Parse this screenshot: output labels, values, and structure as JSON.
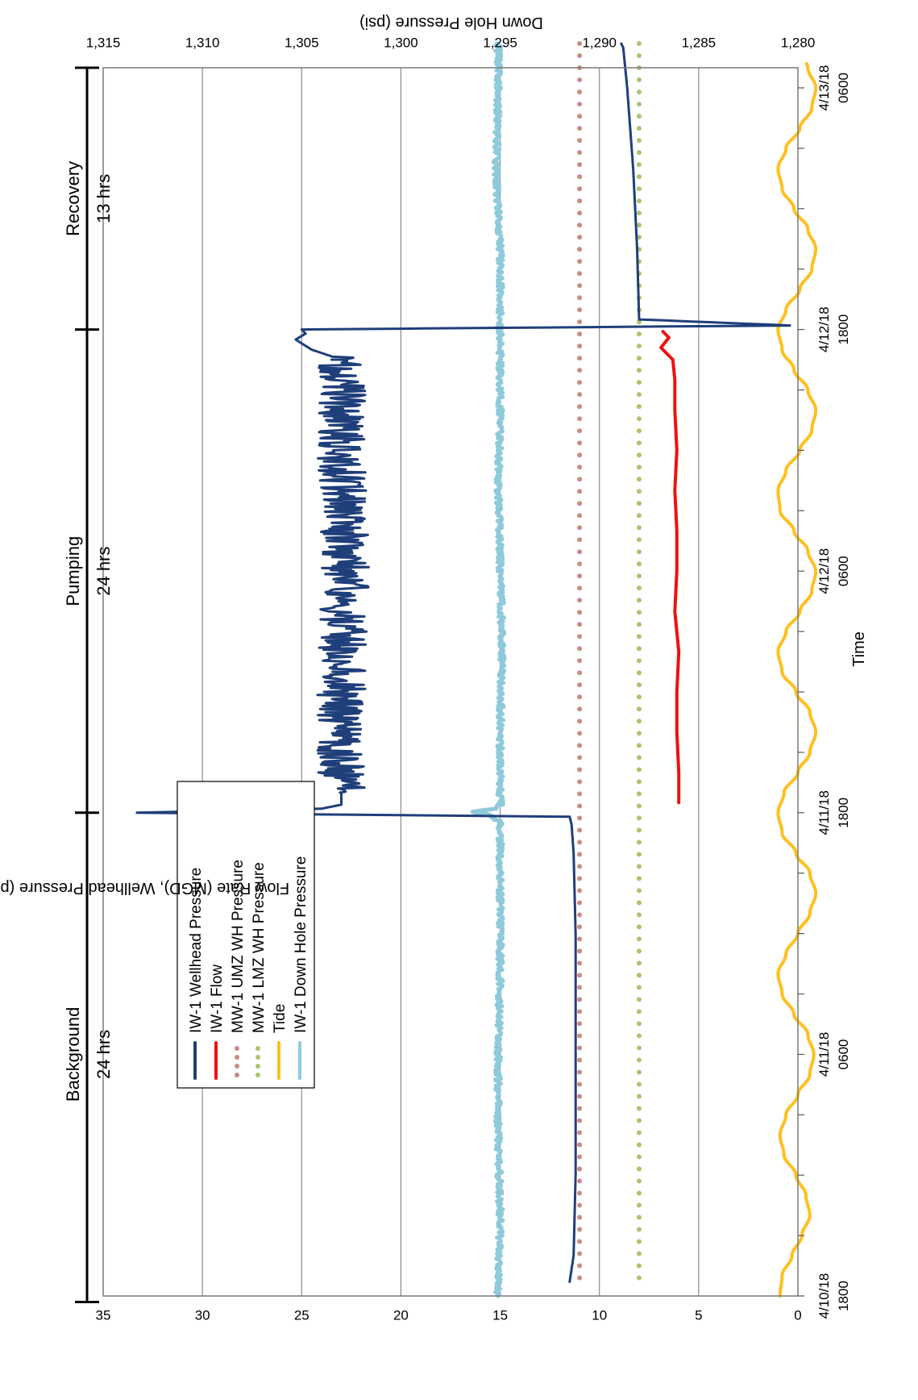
{
  "chart_data": {
    "type": "line",
    "orientation": "rotated-90-clockwise",
    "xlabel": "Time",
    "ylabel_left": "Flow Rate (MGD),  Wellhead Pressure (psi), and Tidal Stage (psi)",
    "ylabel_right": "Down Hole Pressure (psi)",
    "x_unit": "hours since 4/10/18 1800",
    "xlim": [
      0,
      61
    ],
    "ylim_left": [
      0,
      35
    ],
    "ylim_right": [
      1280,
      1315
    ],
    "grid": true,
    "legend_position": "bottom-left",
    "x_ticks": [
      {
        "x": 0,
        "label1": "4/10/18",
        "label2": "1800"
      },
      {
        "x": 12,
        "label1": "4/11/18",
        "label2": "0600"
      },
      {
        "x": 24,
        "label1": "4/11/18",
        "label2": "1800"
      },
      {
        "x": 36,
        "label1": "4/12/18",
        "label2": "0600"
      },
      {
        "x": 48,
        "label1": "4/12/18",
        "label2": "1800"
      },
      {
        "x": 60,
        "label1": "4/13/18",
        "label2": "0600"
      }
    ],
    "y_ticks_left": [
      "0",
      "5",
      "10",
      "15",
      "20",
      "25",
      "30",
      "35"
    ],
    "y_ticks_right": [
      "1,280",
      "1,285",
      "1,290",
      "1,295",
      "1,300",
      "1,305",
      "1,310",
      "1,315"
    ],
    "phases": [
      {
        "name": "Background",
        "duration": "24 hrs",
        "start": -0.3,
        "end": 24
      },
      {
        "name": "Pumping",
        "duration": "24 hrs",
        "start": 24,
        "end": 48
      },
      {
        "name": "Recovery",
        "duration": "13 hrs",
        "start": 48,
        "end": 61
      }
    ],
    "series": [
      {
        "name": "IW-1 Wellhead Pressure",
        "color": "#1f3f7a",
        "style": "solid",
        "axis": "left",
        "x": [
          0.7,
          2,
          6,
          12,
          18,
          22,
          23.4,
          23.8,
          24,
          24.2,
          24.4,
          25,
          30,
          36,
          42,
          46.5,
          47,
          47.5,
          47.8,
          48,
          48.2,
          48.5,
          52,
          56,
          60,
          62,
          62.2
        ],
        "y": [
          11.5,
          11.3,
          11.2,
          11.2,
          11.2,
          11.3,
          11.4,
          11.5,
          33.3,
          24.0,
          23.0,
          23.0,
          23.0,
          22.8,
          23.0,
          23.0,
          24.5,
          25.3,
          24.8,
          25.0,
          0.4,
          8.0,
          8.1,
          8.3,
          8.6,
          8.8,
          8.9
        ],
        "noise_ranges": [
          [
            25.0,
            46.6,
            1.2
          ]
        ]
      },
      {
        "name": "IW-1 Flow",
        "color": "#ee1111",
        "style": "solid",
        "axis": "left",
        "x": [
          24.5,
          26,
          28,
          30,
          32,
          34,
          36,
          38,
          40,
          42,
          44,
          45.5,
          46.5,
          47.1,
          47.6,
          47.9
        ],
        "y": [
          6.0,
          6.0,
          6.1,
          6.1,
          6.0,
          6.2,
          6.1,
          6.1,
          6.2,
          6.1,
          6.2,
          6.2,
          6.3,
          6.9,
          6.5,
          6.8
        ]
      },
      {
        "name": "MW-1 UMZ WH Pressure",
        "color": "#c98b86",
        "style": "dotted",
        "axis": "left",
        "x": [
          0.9,
          62.2
        ],
        "y": [
          11.0,
          11.0
        ]
      },
      {
        "name": "MW-1 LMZ WH Pressure",
        "color": "#a9c56d",
        "style": "dotted",
        "axis": "left",
        "x": [
          0.9,
          62.2
        ],
        "y": [
          8.0,
          8.0
        ]
      },
      {
        "name": "Tide",
        "color": "#ffbf1f",
        "style": "solid",
        "axis": "left",
        "x": [
          0,
          1,
          2,
          3,
          4,
          5,
          6,
          7,
          8,
          9,
          10,
          11,
          12,
          13,
          14,
          15,
          16,
          17,
          18,
          19,
          20,
          21,
          22,
          23,
          24,
          25,
          26,
          27,
          28,
          29,
          30,
          31,
          32,
          33,
          34,
          35,
          36,
          37,
          38,
          39,
          40,
          41,
          42,
          43,
          44,
          45,
          46,
          47,
          48,
          49,
          50,
          51,
          52,
          53,
          54,
          55,
          56,
          57,
          58,
          59,
          60,
          61,
          62,
          63
        ],
        "y": [
          0.9,
          0.8,
          0.3,
          -0.2,
          -0.6,
          -0.4,
          0.1,
          0.7,
          0.9,
          0.6,
          0.0,
          -0.6,
          -0.8,
          -0.5,
          0.2,
          0.8,
          1.0,
          0.6,
          0.0,
          -0.6,
          -0.9,
          -0.6,
          0.1,
          0.8,
          1.0,
          0.7,
          0.0,
          -0.6,
          -0.9,
          -0.6,
          0.1,
          0.8,
          1.0,
          0.6,
          -0.1,
          -0.7,
          -0.9,
          -0.5,
          0.2,
          0.9,
          1.0,
          0.6,
          -0.1,
          -0.7,
          -0.9,
          -0.5,
          0.2,
          0.8,
          1.0,
          0.6,
          -0.1,
          -0.7,
          -0.9,
          -0.5,
          0.2,
          0.8,
          1.0,
          0.6,
          -0.1,
          -0.7,
          -0.9,
          -0.5,
          0.2,
          0.4
        ]
      },
      {
        "name": "IW-1 Down Hole Pressure",
        "color": "#8fcadb",
        "style": "solid",
        "axis": "right",
        "x": [
          0,
          4,
          8,
          12,
          16,
          20,
          23.5,
          23.9,
          24.05,
          24.2,
          24.4,
          28,
          32,
          36,
          40,
          44,
          47.8,
          48.0,
          48.2,
          52,
          56,
          60,
          62.2
        ],
        "y": [
          1295.1,
          1295.0,
          1295.1,
          1295.1,
          1295.0,
          1295.0,
          1295.0,
          1295.5,
          1296.5,
          1295.3,
          1295.0,
          1295.0,
          1294.9,
          1295.0,
          1295.1,
          1295.0,
          1295.0,
          1295.1,
          1295.0,
          1295.0,
          1295.2,
          1295.1,
          1295.1
        ],
        "noise_ranges": [
          [
            0,
            62.2,
            0.15
          ]
        ]
      }
    ]
  }
}
